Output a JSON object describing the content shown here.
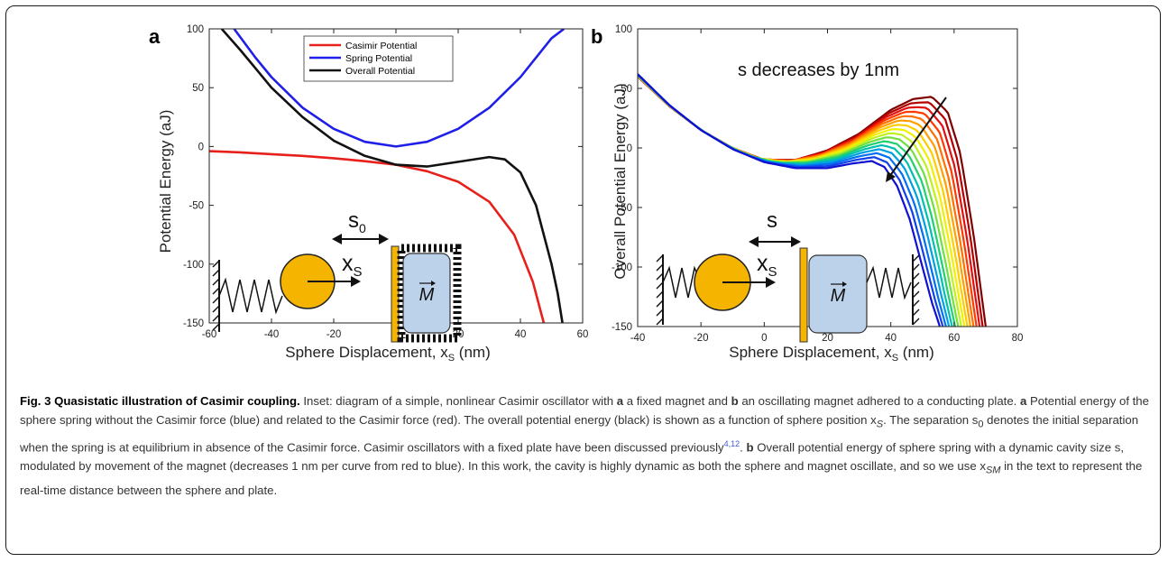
{
  "chart_data": [
    {
      "panel": "a",
      "type": "line",
      "xlabel": "Sphere Displacement, x",
      "xlabel_sub": "S",
      "xlabel_unit": " (nm)",
      "ylabel": "Potential Energy (aJ)",
      "xlim": [
        -60,
        60
      ],
      "ylim": [
        -150,
        100
      ],
      "xticks": [
        -60,
        -40,
        -20,
        0,
        20,
        40,
        60
      ],
      "yticks": [
        -150,
        -100,
        -50,
        0,
        50,
        100
      ],
      "legend_position": "top-right",
      "grid": false,
      "series": [
        {
          "name": "Casimir Potential",
          "color": "#e8201c",
          "x": [
            -60,
            -50,
            -40,
            -30,
            -20,
            -10,
            0,
            10,
            20,
            30,
            38,
            44,
            47.5
          ],
          "y": [
            -4,
            -5,
            -6.5,
            -8,
            -10,
            -12.5,
            -15.5,
            -21,
            -30,
            -47,
            -75,
            -115,
            -150
          ]
        },
        {
          "name": "Spring Potential",
          "color": "#1f1fe8",
          "x": [
            -52,
            -45,
            -40,
            -30,
            -20,
            -10,
            0,
            10,
            20,
            30,
            40,
            50,
            54
          ],
          "y": [
            100,
            75,
            59,
            33,
            15,
            4,
            0,
            4,
            15,
            33,
            59,
            92,
            100
          ]
        },
        {
          "name": "Overall Potential",
          "color": "#111111",
          "x": [
            -56,
            -50,
            -45,
            -40,
            -30,
            -20,
            -10,
            0,
            10,
            20,
            30,
            35,
            40,
            45,
            48,
            50,
            52,
            53.5
          ],
          "y": [
            100,
            82,
            66,
            50,
            25,
            5,
            -8,
            -15.5,
            -17,
            -13,
            -9,
            -11,
            -22,
            -50,
            -80,
            -100,
            -125,
            -150
          ]
        }
      ]
    },
    {
      "panel": "b",
      "type": "line",
      "xlabel": "Sphere Displacement, x",
      "xlabel_sub": "S",
      "xlabel_unit": " (nm)",
      "ylabel": "Overall Potential Energy (aJ)",
      "xlim": [
        -40,
        80
      ],
      "ylim": [
        -150,
        100
      ],
      "xticks": [
        -40,
        -20,
        0,
        20,
        40,
        60,
        80
      ],
      "yticks": [
        -150,
        -100,
        -50,
        0,
        50,
        100
      ],
      "grid": false,
      "annotation": "s decreases by 1nm",
      "curve_count": 16,
      "color_order": "red-to-blue",
      "first_curve_color": "#7f0000",
      "last_curve_color": "#1010d0",
      "first_curve": {
        "x": [
          -40,
          -30,
          -20,
          -10,
          0,
          10,
          20,
          30,
          40,
          47,
          53,
          58,
          62,
          66,
          70
        ],
        "y": [
          60,
          35,
          15,
          0,
          -10,
          -10,
          -2,
          12,
          32,
          41,
          43,
          30,
          -5,
          -70,
          -150
        ]
      },
      "last_curve": {
        "x": [
          -40,
          -30,
          -20,
          -10,
          0,
          10,
          20,
          28,
          34,
          38,
          42,
          46,
          50,
          53,
          55.5
        ],
        "y": [
          62,
          36,
          15,
          -1,
          -12,
          -17,
          -17,
          -13,
          -11,
          -16,
          -32,
          -60,
          -100,
          -130,
          -150
        ]
      }
    }
  ],
  "labels": {
    "panel_a": "a",
    "panel_b": "b"
  },
  "inset": {
    "s0": "s",
    "s0_sub": "0",
    "s": "s",
    "xs": "x",
    "xs_sub": "S",
    "magnet": "M"
  },
  "caption": {
    "title": "Fig. 3 Quasistatic illustration of Casimir coupling.",
    "text_before_a": " Inset: diagram of a simple, nonlinear Casimir oscillator with ",
    "a1": "a",
    "text_between": " a fixed magnet and ",
    "b1": "b",
    "text_after_b": " an oscillating magnet adhered to a conducting plate. ",
    "a2": "a",
    "text_a2": " Potential energy of the sphere spring without the Casimir force (blue) and related to the Casimir force (red). The overall potential energy (black) is shown as a function of sphere position x",
    "sub_S": "S",
    "text_s0_1": ". The separation s",
    "sub_0": "0",
    "text_s0_2": " denotes the initial separation when the spring is at equilibrium in absence of the Casimir force. Casimir oscillators with a fixed plate have been discussed previously",
    "ref": "4,12",
    "text_dot": ". ",
    "b2": "b",
    "text_b2": " Overall potential energy of sphere spring with a dynamic cavity size s, modulated by movement of the magnet (decreases 1 nm per curve from red to blue). In this work, the cavity is highly dynamic as both the sphere and magnet oscillate, and so we use x",
    "sub_SM": "SM",
    "text_end": " in the text to represent the real-time distance between the sphere and plate."
  }
}
